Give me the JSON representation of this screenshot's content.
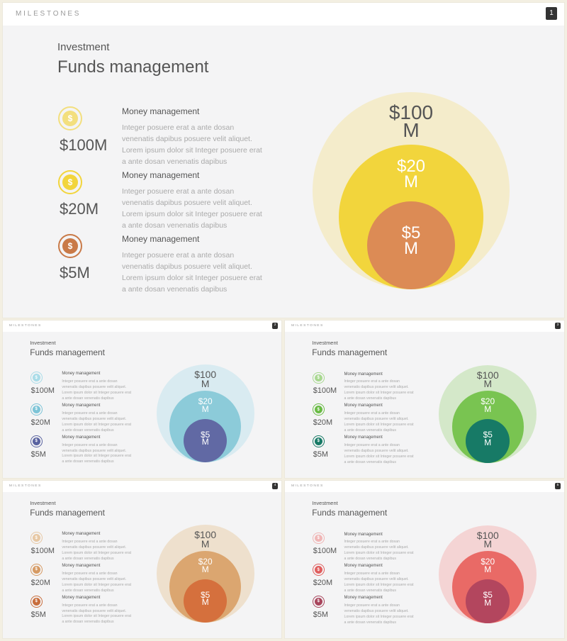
{
  "slides": [
    {
      "brand": "MILESTONES",
      "number": "1",
      "kicker": "Investment",
      "title": "Funds management",
      "rows": [
        {
          "amount": "$100M",
          "heading": "Money management",
          "body": "Integer posuere erat a ante dosan venenatis dapibus posuere velit aliquet. Lorem ipsum dolor sit Integer posuere erat a ante dosan venenatis dapibus",
          "icon": "dollar-icon",
          "glyph": "$"
        },
        {
          "amount": "$20M",
          "heading": "Money management",
          "body": "Integer posuere erat a ante dosan venenatis dapibus posuere velit aliquet. Lorem ipsum dolor sit Integer posuere erat a ante dosan venenatis dapibus",
          "icon": "dollar-icon",
          "glyph": "$"
        },
        {
          "amount": "$5M",
          "heading": "Money management",
          "body": "Integer posuere erat a ante dosan venenatis dapibus posuere velit aliquet. Lorem ipsum dolor sit Integer posuere erat a ante dosan venenatis dapibus",
          "icon": "dollar-icon",
          "glyph": "$"
        }
      ],
      "circles": [
        {
          "l1": "$100",
          "l2": "M"
        },
        {
          "l1": "$20",
          "l2": "M"
        },
        {
          "l1": "$5",
          "l2": "M"
        }
      ],
      "colors": {
        "c1": "#f4eccb",
        "c2": "#f2d53c",
        "c3": "#dc8b55",
        "icon1": "#f3df7e",
        "icon2": "#f2d53c",
        "icon3": "#c97a48"
      }
    },
    {
      "brand": "MILESTONES",
      "number": "2",
      "kicker": "Investment",
      "title": "Funds management",
      "rows": [
        {
          "amount": "$100M",
          "heading": "Money management",
          "body": "Integer posuere erat a ante dosan venenatis dapibus posuere velit aliquet. Lorem ipsum dolor sit Integer posuere erat a ante dosan venenatis dapibus",
          "icon": "dollar-icon",
          "glyph": "$"
        },
        {
          "amount": "$20M",
          "heading": "Money management",
          "body": "Integer posuere erat a ante dosan venenatis dapibus posuere velit aliquet. Lorem ipsum dolor sit Integer posuere erat a ante dosan venenatis dapibus",
          "icon": "dollar-icon",
          "glyph": "$"
        },
        {
          "amount": "$5M",
          "heading": "Money management",
          "body": "Integer posuere erat a ante dosan venenatis dapibus posuere velit aliquet. Lorem ipsum dolor sit Integer posuere erat a ante dosan venenatis dapibus",
          "icon": "dollar-icon",
          "glyph": "$"
        }
      ],
      "circles": [
        {
          "l1": "$100",
          "l2": "M"
        },
        {
          "l1": "$20",
          "l2": "M"
        },
        {
          "l1": "$5",
          "l2": "M"
        }
      ],
      "colors": {
        "c1": "#d9ebf1",
        "c2": "#8ccbd9",
        "c3": "#6169a4",
        "icon1": "#a9dce8",
        "icon2": "#7cc4d7",
        "icon3": "#5a63a0"
      }
    },
    {
      "brand": "MILESTONES",
      "number": "3",
      "kicker": "Investment",
      "title": "Funds management",
      "rows": [
        {
          "amount": "$100M",
          "heading": "Money management",
          "body": "Integer posuere erat a ante dosan venenatis dapibus posuere velit aliquet. Lorem ipsum dolor sit Integer posuere erat a ante dosan venenatis dapibus",
          "icon": "dollar-icon",
          "glyph": "$"
        },
        {
          "amount": "$20M",
          "heading": "Money management",
          "body": "Integer posuere erat a ante dosan venenatis dapibus posuere velit aliquet. Lorem ipsum dolor sit Integer posuere erat a ante dosan venenatis dapibus",
          "icon": "dollar-icon",
          "glyph": "$"
        },
        {
          "amount": "$5M",
          "heading": "Money management",
          "body": "Integer posuere erat a ante dosan venenatis dapibus posuere velit aliquet. Lorem ipsum dolor sit Integer posuere erat a ante dosan venenatis dapibus",
          "icon": "dollar-icon",
          "glyph": "$"
        }
      ],
      "circles": [
        {
          "l1": "$100",
          "l2": "M"
        },
        {
          "l1": "$20",
          "l2": "M"
        },
        {
          "l1": "$5",
          "l2": "M"
        }
      ],
      "colors": {
        "c1": "#d4e8c9",
        "c2": "#79c451",
        "c3": "#177a66",
        "icon1": "#a8d890",
        "icon2": "#69bb44",
        "icon3": "#177a66"
      }
    },
    {
      "brand": "MILESTONES",
      "number": "4",
      "kicker": "Investment",
      "title": "Funds management",
      "rows": [
        {
          "amount": "$100M",
          "heading": "Money management",
          "body": "Integer posuere erat a ante dosan venenatis dapibus posuere velit aliquet. Lorem ipsum dolor sit Integer posuere erat a ante dosan venenatis dapibus",
          "icon": "dollar-icon",
          "glyph": "$"
        },
        {
          "amount": "$20M",
          "heading": "Money management",
          "body": "Integer posuere erat a ante dosan venenatis dapibus posuere velit aliquet. Lorem ipsum dolor sit Integer posuere erat a ante dosan venenatis dapibus",
          "icon": "dollar-icon",
          "glyph": "$"
        },
        {
          "amount": "$5M",
          "heading": "Money management",
          "body": "Integer posuere erat a ante dosan venenatis dapibus posuere velit aliquet. Lorem ipsum dolor sit Integer posuere erat a ante dosan venenatis dapibus",
          "icon": "dollar-icon",
          "glyph": "$"
        }
      ],
      "circles": [
        {
          "l1": "$100",
          "l2": "M"
        },
        {
          "l1": "$20",
          "l2": "M"
        },
        {
          "l1": "$5",
          "l2": "M"
        }
      ],
      "colors": {
        "c1": "#eee0cd",
        "c2": "#dba670",
        "c3": "#d5703d",
        "icon1": "#e7c8a4",
        "icon2": "#d69a63",
        "icon3": "#c86d3c"
      }
    },
    {
      "brand": "MILESTONES",
      "number": "5",
      "kicker": "Investment",
      "title": "Funds management",
      "rows": [
        {
          "amount": "$100M",
          "heading": "Money management",
          "body": "Integer posuere erat a ante dosan venenatis dapibus posuere velit aliquet. Lorem ipsum dolor sit Integer posuere erat a ante dosan venenatis dapibus",
          "icon": "dollar-icon",
          "glyph": "$"
        },
        {
          "amount": "$20M",
          "heading": "Money management",
          "body": "Integer posuere erat a ante dosan venenatis dapibus posuere velit aliquet. Lorem ipsum dolor sit Integer posuere erat a ante dosan venenatis dapibus",
          "icon": "dollar-icon",
          "glyph": "$"
        },
        {
          "amount": "$5M",
          "heading": "Money management",
          "body": "Integer posuere erat a ante dosan venenatis dapibus posuere velit aliquet. Lorem ipsum dolor sit Integer posuere erat a ante dosan venenatis dapibus",
          "icon": "dollar-icon",
          "glyph": "$"
        }
      ],
      "circles": [
        {
          "l1": "$100",
          "l2": "M"
        },
        {
          "l1": "$20",
          "l2": "M"
        },
        {
          "l1": "$5",
          "l2": "M"
        }
      ],
      "colors": {
        "c1": "#f4d4d4",
        "c2": "#e96a66",
        "c3": "#b3465e",
        "icon1": "#f0b6b6",
        "icon2": "#e05e5e",
        "icon3": "#a8455c"
      }
    }
  ]
}
